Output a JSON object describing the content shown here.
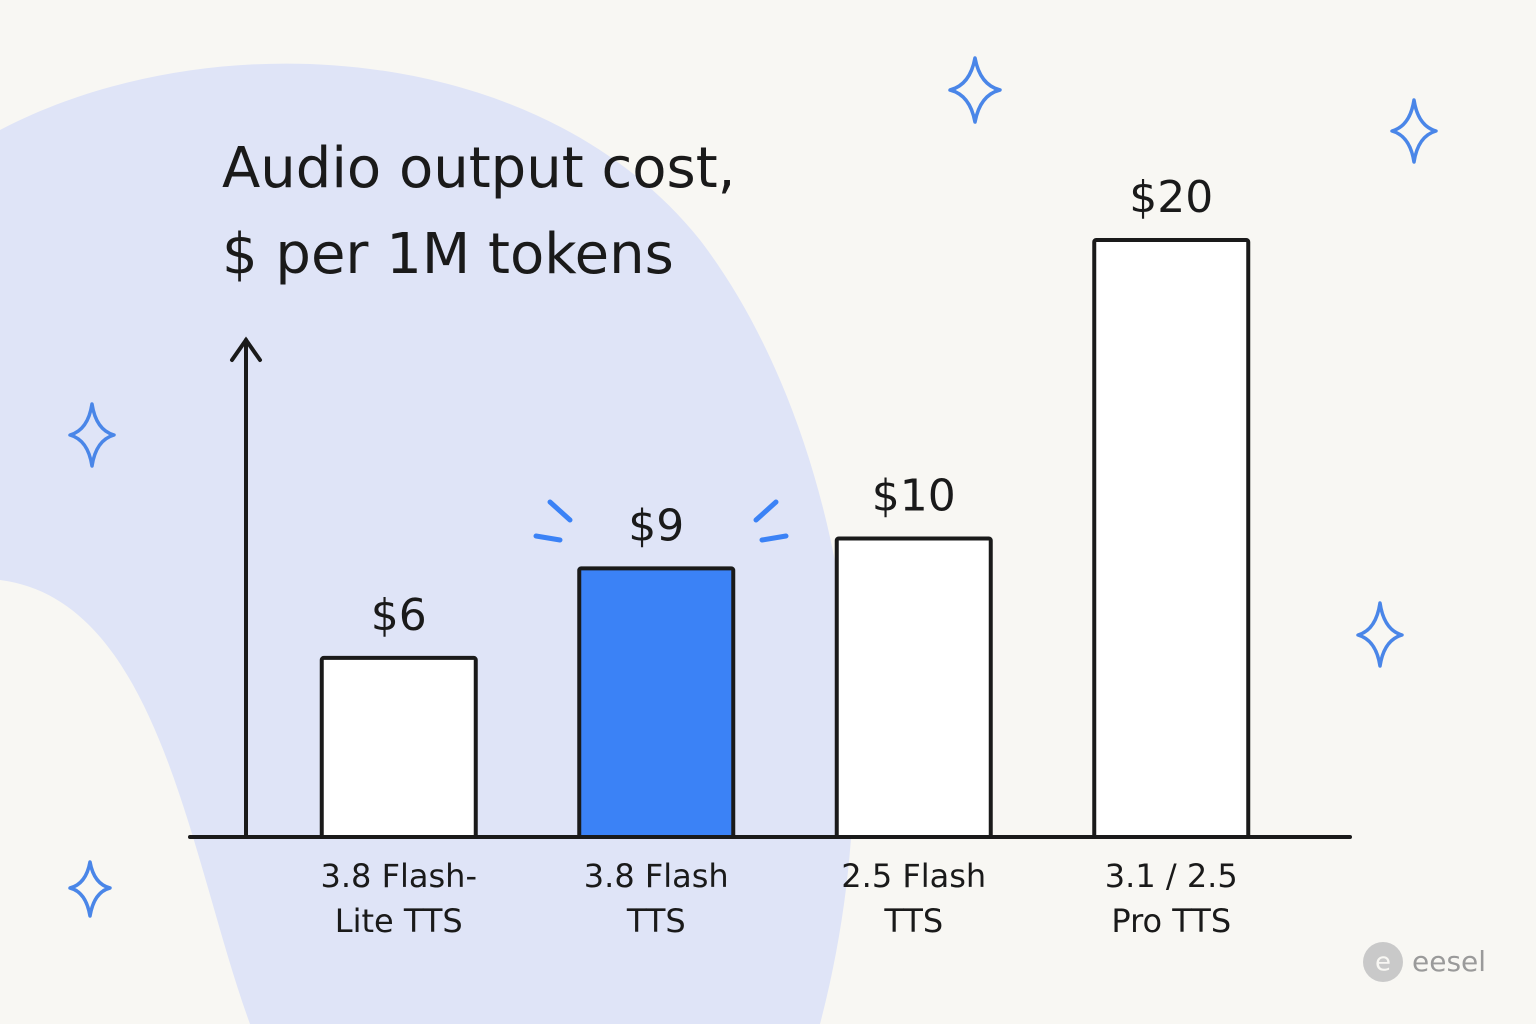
{
  "chart_data": {
    "type": "bar",
    "title": "Audio output cost,",
    "subtitle": "$ per 1M tokens",
    "categories": [
      "3.8 Flash-Lite TTS",
      "3.8 Flash TTS",
      "2.5 Flash TTS",
      "3.1 / 2.5 Pro TTS"
    ],
    "values": [
      6,
      9,
      10,
      20
    ],
    "value_labels": [
      "$6",
      "$9",
      "$10",
      "$20"
    ],
    "colors": [
      "#ffffff",
      "#3b82f6",
      "#ffffff",
      "#ffffff"
    ],
    "ylim": [
      0,
      20
    ]
  },
  "brand": "eesel"
}
